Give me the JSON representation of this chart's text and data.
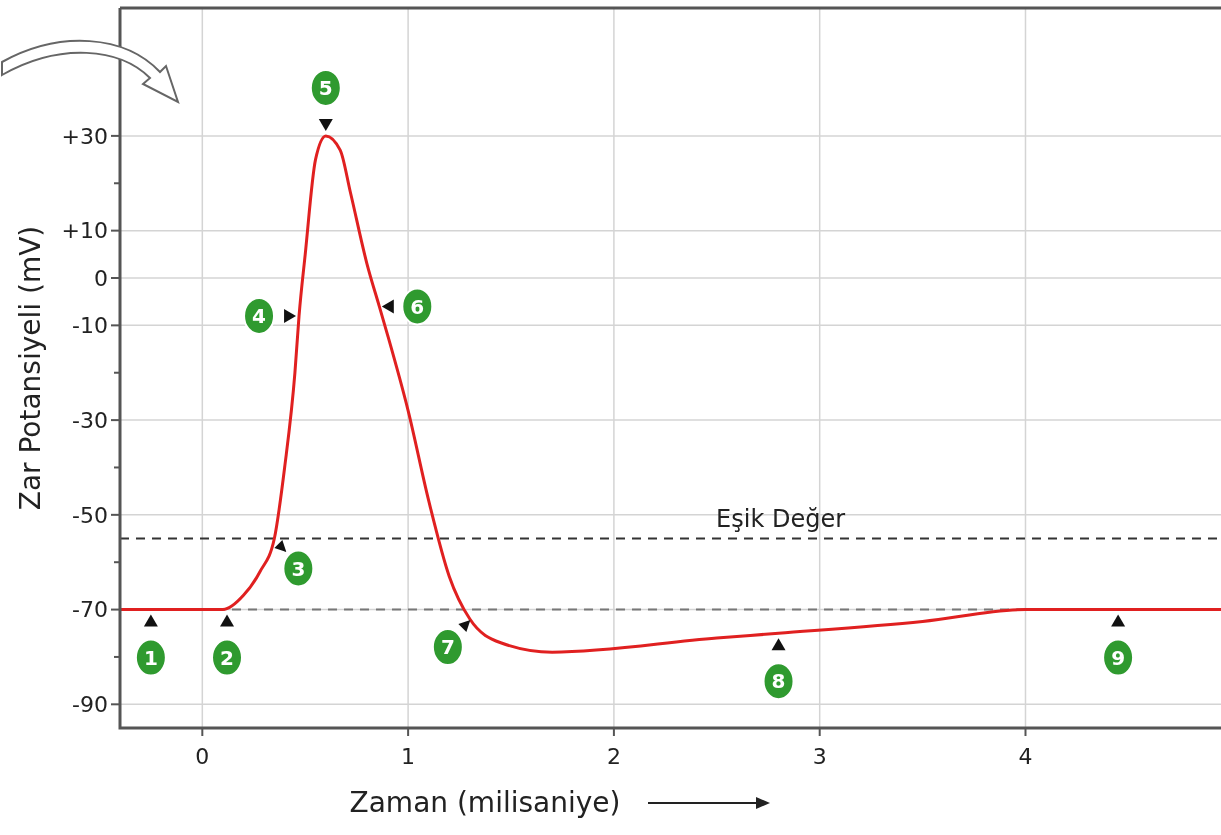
{
  "chart_data": {
    "type": "line",
    "xlabel": "Zaman (milisaniye)",
    "ylabel": "Zar Potansiyeli (mV)",
    "xlim": [
      -0.4,
      4.95
    ],
    "xticks": [
      0,
      1,
      2,
      3,
      4
    ],
    "ylim": [
      -95,
      57
    ],
    "yticks": [
      {
        "value": 30,
        "label": "+30"
      },
      {
        "value": 20,
        "label": null
      },
      {
        "value": 10,
        "label": "+10"
      },
      0,
      -10,
      {
        "value": -20,
        "label": null
      },
      -30,
      {
        "value": -40,
        "label": null
      },
      -50,
      {
        "value": -60,
        "label": null
      },
      -70,
      {
        "value": -80,
        "label": null
      },
      -90
    ],
    "grid": true,
    "marker": "none",
    "line_style": "solid",
    "series": [
      {
        "color": "#e02020",
        "x": [
          -0.4,
          0.1,
          0.2,
          0.28,
          0.35,
          0.4,
          0.45,
          0.47,
          0.5,
          0.55,
          0.6,
          0.67,
          0.72,
          0.8,
          0.86,
          0.9,
          1.0,
          1.1,
          1.2,
          1.3,
          1.45,
          1.7,
          2.5,
          2.8,
          3.5,
          4.0,
          4.95
        ],
        "values": [
          -70,
          -70,
          -67,
          -62,
          -55,
          -40,
          -20,
          -8,
          5,
          25,
          30,
          27,
          18,
          3,
          -6,
          -12,
          -28,
          -47,
          -63,
          -72,
          -77,
          -79,
          -76,
          -75,
          -72.5,
          -70,
          -70
        ]
      }
    ],
    "ref_lines": [
      {
        "axis": "y",
        "value": -55,
        "label": "Eşik Değer",
        "color": "#333333",
        "line_style": "dashed"
      },
      {
        "axis": "y",
        "value": -70,
        "label": null,
        "color": "#777777",
        "line_style": "dashed"
      }
    ],
    "annotations": [
      {
        "text": "1",
        "x": -0.25,
        "y": -70
      },
      {
        "text": "2",
        "x": 0.12,
        "y": -70
      },
      {
        "text": "3",
        "x": 0.35,
        "y": -55
      },
      {
        "text": "4",
        "x": 0.47,
        "y": -8
      },
      {
        "text": "5",
        "x": 0.6,
        "y": 30
      },
      {
        "text": "6",
        "x": 0.86,
        "y": -6
      },
      {
        "text": "7",
        "x": 1.3,
        "y": -72
      },
      {
        "text": "8",
        "x": 2.8,
        "y": -75
      },
      {
        "text": "9",
        "x": 4.45,
        "y": -70
      }
    ]
  }
}
